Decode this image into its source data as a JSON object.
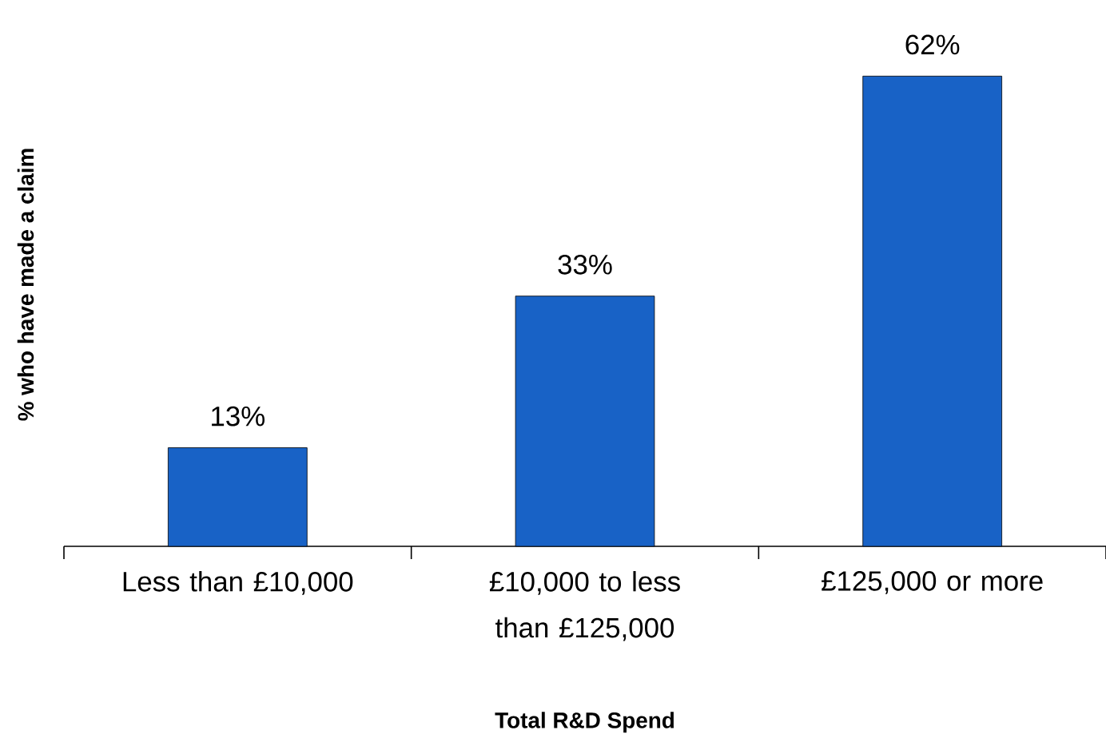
{
  "chart_data": {
    "type": "bar",
    "xlabel": "Total R&D Spend",
    "ylabel": "% who have made a claim",
    "categories": [
      "Less than £10,000",
      "£10,000 to less than £125,000",
      "£125,000 or more"
    ],
    "values": [
      13,
      33,
      62
    ],
    "value_labels": [
      "13%",
      "33%",
      "62%"
    ],
    "color": "#1862c6"
  }
}
